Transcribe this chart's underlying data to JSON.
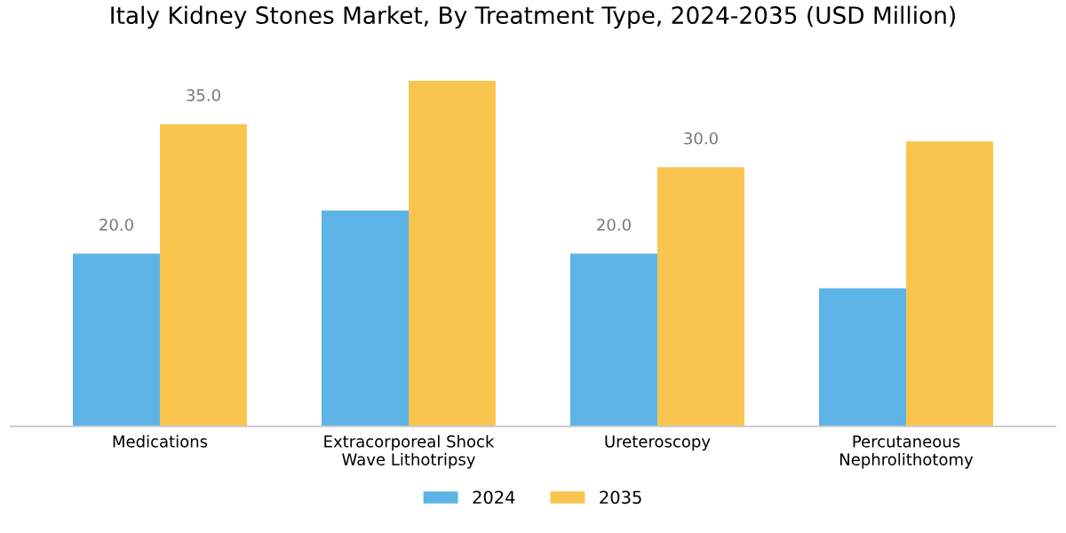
{
  "chart_data": {
    "type": "bar",
    "title": "Italy Kidney Stones Market, By Treatment Type, 2024-2035 (USD Million)",
    "categories": [
      "Medications",
      "Extracorporeal Shock\nWave Lithotripsy",
      "Ureteroscopy",
      "Percutaneous\nNephrolithotomy"
    ],
    "series": [
      {
        "name": "2024",
        "color": "#5db3e6",
        "values": [
          20,
          25,
          20,
          16
        ],
        "value_labels": [
          "20.0",
          null,
          "20.0",
          null
        ]
      },
      {
        "name": "2035",
        "color": "#f9c54e",
        "values": [
          35,
          40,
          30,
          33
        ],
        "value_labels": [
          "35.0",
          null,
          "30.0",
          null
        ]
      }
    ],
    "legend": "bottom",
    "grid": false
  }
}
